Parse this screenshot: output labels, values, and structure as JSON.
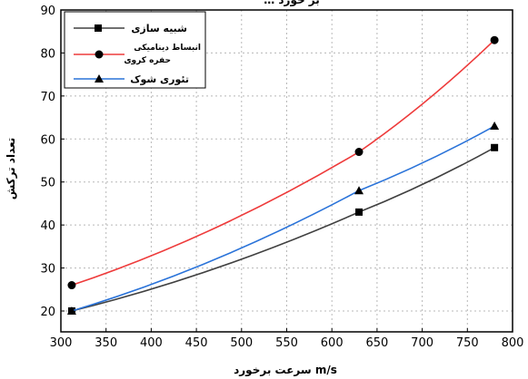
{
  "chart_data": {
    "type": "line",
    "title": "… بر خورد",
    "xlabel": "سرعت برخورد m/s",
    "ylabel": "تعداد ترکش",
    "xlim": [
      300,
      800
    ],
    "ylim": [
      15,
      90
    ],
    "xticks": [
      300,
      350,
      400,
      450,
      500,
      550,
      600,
      650,
      700,
      750,
      800
    ],
    "yticks": [
      20,
      30,
      40,
      50,
      60,
      70,
      80,
      90
    ],
    "grid": true,
    "legend_position": "top-left",
    "x": [
      312,
      630,
      780
    ],
    "series": [
      {
        "name": "شبیه سازی",
        "values": [
          20,
          43,
          58
        ],
        "color": "#404040",
        "marker": "square-icon"
      },
      {
        "name_line1": "انبساط دینامیکی",
        "name_line2": "حفره کروی",
        "values": [
          26,
          57,
          83
        ],
        "color": "#ee3b3b",
        "marker": "circle-icon"
      },
      {
        "name": "تئوری شوک",
        "values": [
          20,
          48,
          63
        ],
        "color": "#2a73d9",
        "marker": "triangle-icon"
      }
    ]
  }
}
